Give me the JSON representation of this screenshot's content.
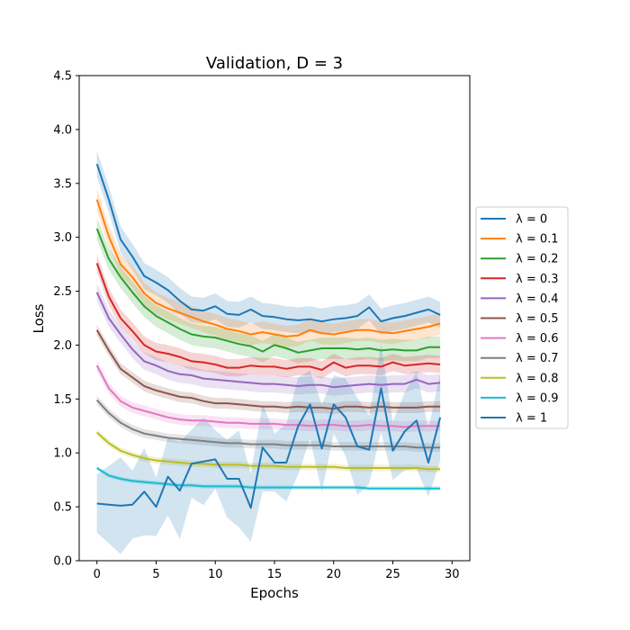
{
  "chart_data": {
    "type": "line",
    "title": "Validation, D = 3",
    "xlabel": "Epochs",
    "ylabel": "Loss",
    "xlim": [
      -1.5,
      31.5
    ],
    "ylim": [
      0,
      4.5
    ],
    "xticks": [
      0,
      5,
      10,
      15,
      20,
      25,
      30
    ],
    "yticks": [
      0.0,
      0.5,
      1.0,
      1.5,
      2.0,
      2.5,
      3.0,
      3.5,
      4.0,
      4.5
    ],
    "xtick_labels": [
      "0",
      "5",
      "10",
      "15",
      "20",
      "25",
      "30"
    ],
    "ytick_labels": [
      "0.0",
      "0.5",
      "1.0",
      "1.5",
      "2.0",
      "2.5",
      "3.0",
      "3.5",
      "4.0",
      "4.5"
    ],
    "legend_position": "right-outside",
    "series": [
      {
        "name": "λ = 0",
        "color": "#1f77b4",
        "band": 0.12,
        "values": [
          3.68,
          3.35,
          2.98,
          2.82,
          2.64,
          2.58,
          2.51,
          2.41,
          2.33,
          2.32,
          2.36,
          2.29,
          2.28,
          2.33,
          2.27,
          2.26,
          2.24,
          2.23,
          2.24,
          2.22,
          2.24,
          2.25,
          2.27,
          2.35,
          2.22,
          2.25,
          2.27,
          2.3,
          2.33,
          2.28
        ]
      },
      {
        "name": "λ = 0.1",
        "color": "#ff7f0e",
        "band": 0.1,
        "values": [
          3.35,
          3.01,
          2.75,
          2.63,
          2.48,
          2.39,
          2.34,
          2.3,
          2.26,
          2.22,
          2.19,
          2.15,
          2.13,
          2.1,
          2.12,
          2.1,
          2.08,
          2.09,
          2.14,
          2.11,
          2.1,
          2.12,
          2.14,
          2.14,
          2.12,
          2.11,
          2.13,
          2.15,
          2.17,
          2.2
        ]
      },
      {
        "name": "λ = 0.2",
        "color": "#2ca02c",
        "band": 0.1,
        "values": [
          3.08,
          2.8,
          2.63,
          2.49,
          2.36,
          2.27,
          2.21,
          2.15,
          2.1,
          2.08,
          2.07,
          2.04,
          2.01,
          1.99,
          1.94,
          2.0,
          1.97,
          1.93,
          1.95,
          1.97,
          1.97,
          1.97,
          1.96,
          1.97,
          1.95,
          1.96,
          1.95,
          1.95,
          1.98,
          1.98
        ]
      },
      {
        "name": "λ = 0.3",
        "color": "#d62728",
        "band": 0.08,
        "values": [
          2.76,
          2.45,
          2.25,
          2.13,
          2.0,
          1.94,
          1.92,
          1.89,
          1.85,
          1.84,
          1.82,
          1.79,
          1.79,
          1.81,
          1.8,
          1.8,
          1.78,
          1.8,
          1.8,
          1.77,
          1.84,
          1.79,
          1.81,
          1.81,
          1.8,
          1.84,
          1.81,
          1.82,
          1.83,
          1.82
        ]
      },
      {
        "name": "λ = 0.4",
        "color": "#9467bd",
        "band": 0.08,
        "values": [
          2.49,
          2.25,
          2.1,
          1.96,
          1.85,
          1.81,
          1.76,
          1.73,
          1.72,
          1.69,
          1.68,
          1.67,
          1.66,
          1.65,
          1.64,
          1.64,
          1.63,
          1.62,
          1.63,
          1.63,
          1.61,
          1.62,
          1.63,
          1.64,
          1.63,
          1.64,
          1.64,
          1.68,
          1.64,
          1.65
        ]
      },
      {
        "name": "λ = 0.5",
        "color": "#8c564b",
        "band": 0.05,
        "values": [
          2.14,
          1.95,
          1.78,
          1.7,
          1.62,
          1.58,
          1.55,
          1.52,
          1.51,
          1.48,
          1.46,
          1.46,
          1.45,
          1.44,
          1.43,
          1.43,
          1.42,
          1.43,
          1.42,
          1.42,
          1.41,
          1.43,
          1.43,
          1.42,
          1.43,
          1.42,
          1.42,
          1.42,
          1.43,
          1.43
        ]
      },
      {
        "name": "λ = 0.6",
        "color": "#e377c2",
        "band": 0.05,
        "values": [
          1.81,
          1.6,
          1.48,
          1.42,
          1.39,
          1.36,
          1.33,
          1.31,
          1.3,
          1.3,
          1.29,
          1.28,
          1.28,
          1.27,
          1.27,
          1.27,
          1.26,
          1.26,
          1.25,
          1.26,
          1.26,
          1.25,
          1.25,
          1.26,
          1.25,
          1.25,
          1.24,
          1.25,
          1.25,
          1.25
        ]
      },
      {
        "name": "λ = 0.7",
        "color": "#7f7f7f",
        "band": 0.04,
        "values": [
          1.49,
          1.37,
          1.28,
          1.22,
          1.18,
          1.16,
          1.14,
          1.13,
          1.12,
          1.11,
          1.1,
          1.09,
          1.09,
          1.08,
          1.08,
          1.08,
          1.07,
          1.07,
          1.07,
          1.07,
          1.06,
          1.06,
          1.06,
          1.06,
          1.06,
          1.06,
          1.06,
          1.05,
          1.05,
          1.05
        ]
      },
      {
        "name": "λ = 0.8",
        "color": "#bcbd22",
        "band": 0.03,
        "values": [
          1.19,
          1.09,
          1.02,
          0.98,
          0.95,
          0.93,
          0.92,
          0.91,
          0.9,
          0.9,
          0.89,
          0.89,
          0.89,
          0.88,
          0.88,
          0.88,
          0.87,
          0.87,
          0.87,
          0.87,
          0.87,
          0.86,
          0.86,
          0.86,
          0.86,
          0.86,
          0.86,
          0.86,
          0.85,
          0.85
        ]
      },
      {
        "name": "λ = 0.9",
        "color": "#17becf",
        "band": 0.02,
        "values": [
          0.86,
          0.79,
          0.76,
          0.74,
          0.73,
          0.72,
          0.71,
          0.7,
          0.7,
          0.69,
          0.69,
          0.69,
          0.69,
          0.68,
          0.68,
          0.68,
          0.68,
          0.68,
          0.68,
          0.68,
          0.68,
          0.68,
          0.68,
          0.67,
          0.67,
          0.67,
          0.67,
          0.67,
          0.67,
          0.67
        ]
      },
      {
        "name": "λ = 1",
        "color": "#1f77b4",
        "band": 0.45,
        "values": [
          0.53,
          0.52,
          0.51,
          0.52,
          0.64,
          0.5,
          0.78,
          0.65,
          0.9,
          0.92,
          0.94,
          0.76,
          0.76,
          0.49,
          1.05,
          0.91,
          0.91,
          1.25,
          1.45,
          1.04,
          1.45,
          1.33,
          1.06,
          1.03,
          1.6,
          1.02,
          1.2,
          1.3,
          0.91,
          1.33
        ]
      }
    ]
  }
}
